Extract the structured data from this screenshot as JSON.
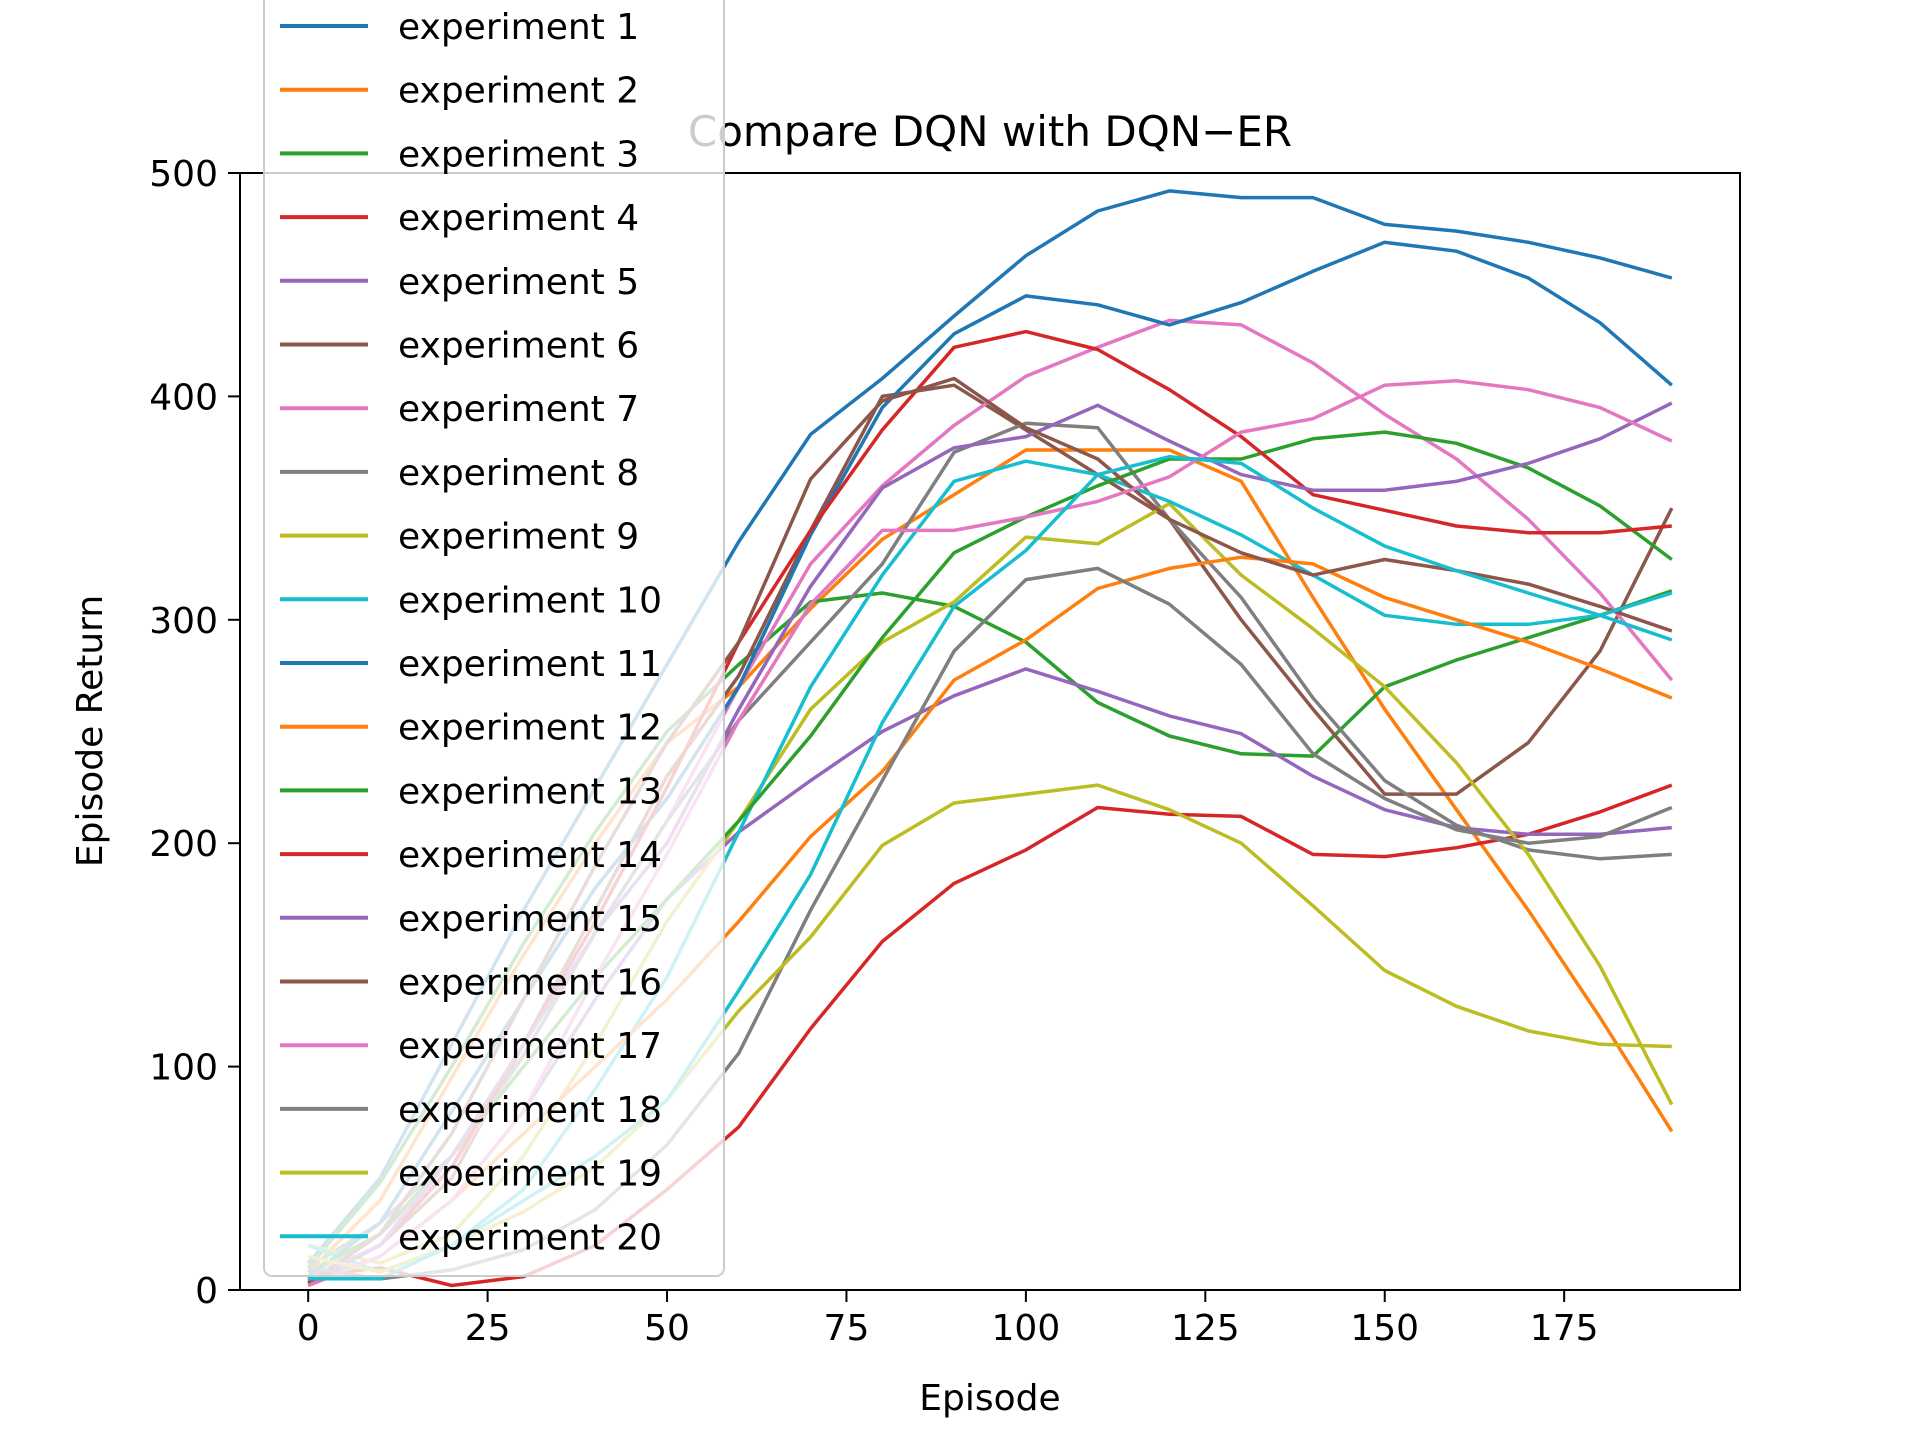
{
  "chart_data": {
    "type": "line",
    "title": "Compare DQN with DQN−ER",
    "xlabel": "Episode",
    "ylabel": "Episode Return",
    "xlim": [
      -9.5,
      199.5
    ],
    "ylim": [
      0,
      500
    ],
    "xticks": [
      0,
      25,
      50,
      75,
      100,
      125,
      150,
      175
    ],
    "xtick_labels": [
      "0",
      "25",
      "50",
      "75",
      "100",
      "125",
      "150",
      "175"
    ],
    "yticks": [
      0,
      100,
      200,
      300,
      400,
      500
    ],
    "ytick_labels": [
      "0",
      "100",
      "200",
      "300",
      "400",
      "500"
    ],
    "grid": false,
    "legend_position": "upper-left",
    "x": [
      0,
      10,
      20,
      30,
      40,
      50,
      60,
      70,
      80,
      90,
      100,
      110,
      120,
      130,
      140,
      150,
      160,
      170,
      180,
      190
    ],
    "series": [
      {
        "name": "experiment 1",
        "color": "#1f77b4",
        "values": [
          12,
          50,
          110,
          170,
          225,
          280,
          335,
          383,
          408,
          436,
          463,
          483,
          492,
          489,
          489,
          477,
          474,
          469,
          462,
          453
        ]
      },
      {
        "name": "experiment 2",
        "color": "#ff7f0e",
        "values": [
          8,
          40,
          95,
          150,
          200,
          245,
          270,
          305,
          336,
          356,
          376,
          376,
          376,
          362,
          310,
          260,
          215,
          170,
          122,
          71
        ]
      },
      {
        "name": "experiment 3",
        "color": "#2ca02c",
        "values": [
          10,
          48,
          100,
          155,
          205,
          250,
          280,
          308,
          312,
          306,
          290,
          263,
          248,
          240,
          239,
          270,
          282,
          292,
          302,
          313
        ]
      },
      {
        "name": "experiment 4",
        "color": "#d62728",
        "values": [
          6,
          10,
          2,
          6,
          20,
          45,
          73,
          117,
          156,
          182,
          197,
          216,
          213,
          212,
          195,
          194,
          198,
          204,
          214,
          226
        ]
      },
      {
        "name": "experiment 5",
        "color": "#9467bd",
        "values": [
          4,
          15,
          40,
          80,
          130,
          175,
          205,
          228,
          250,
          266,
          278,
          268,
          257,
          249,
          230,
          215,
          207,
          204,
          204,
          207
        ]
      },
      {
        "name": "experiment 6",
        "color": "#8c564b",
        "values": [
          5,
          20,
          50,
          110,
          170,
          230,
          275,
          340,
          400,
          405,
          385,
          365,
          345,
          300,
          260,
          222,
          222,
          245,
          286,
          350
        ]
      },
      {
        "name": "experiment 7",
        "color": "#e377c2",
        "values": [
          6,
          25,
          55,
          105,
          160,
          210,
          270,
          325,
          360,
          387,
          409,
          422,
          434,
          432,
          415,
          392,
          372,
          345,
          312,
          273
        ]
      },
      {
        "name": "experiment 8",
        "color": "#7f7f7f",
        "values": [
          10,
          30,
          60,
          105,
          160,
          210,
          255,
          290,
          325,
          375,
          388,
          386,
          345,
          310,
          265,
          228,
          208,
          197,
          193,
          195
        ]
      },
      {
        "name": "experiment 9",
        "color": "#bcbd22",
        "values": [
          20,
          12,
          25,
          60,
          110,
          165,
          210,
          260,
          290,
          308,
          337,
          334,
          352,
          320,
          296,
          270,
          236,
          195,
          145,
          83
        ]
      },
      {
        "name": "experiment 10",
        "color": "#17becf",
        "values": [
          20,
          8,
          20,
          45,
          90,
          140,
          205,
          270,
          320,
          362,
          371,
          365,
          353,
          338,
          320,
          302,
          298,
          298,
          302,
          291
        ]
      },
      {
        "name": "experiment 11",
        "color": "#1f77b4",
        "values": [
          6,
          30,
          80,
          130,
          180,
          220,
          270,
          338,
          395,
          428,
          445,
          441,
          432,
          442,
          456,
          469,
          465,
          453,
          433,
          405
        ]
      },
      {
        "name": "experiment 12",
        "color": "#ff7f0e",
        "values": [
          2,
          15,
          40,
          70,
          100,
          130,
          165,
          203,
          232,
          273,
          291,
          314,
          323,
          328,
          325,
          310,
          300,
          290,
          278,
          265
        ]
      },
      {
        "name": "experiment 13",
        "color": "#2ca02c",
        "values": [
          8,
          25,
          60,
          100,
          140,
          175,
          210,
          248,
          292,
          330,
          346,
          360,
          372,
          372,
          381,
          384,
          379,
          368,
          351,
          327
        ]
      },
      {
        "name": "experiment 14",
        "color": "#d62728",
        "values": [
          3,
          20,
          55,
          110,
          165,
          225,
          290,
          340,
          385,
          422,
          429,
          421,
          403,
          382,
          356,
          349,
          342,
          339,
          339,
          342
        ]
      },
      {
        "name": "experiment 15",
        "color": "#9467bd",
        "values": [
          4,
          20,
          60,
          110,
          160,
          200,
          260,
          315,
          359,
          377,
          382,
          396,
          380,
          365,
          358,
          358,
          362,
          370,
          381,
          397
        ]
      },
      {
        "name": "experiment 16",
        "color": "#8c564b",
        "values": [
          3,
          25,
          70,
          130,
          190,
          245,
          290,
          363,
          398,
          408,
          386,
          372,
          345,
          330,
          320,
          327,
          322,
          316,
          306,
          295
        ]
      },
      {
        "name": "experiment 17",
        "color": "#e377c2",
        "values": [
          2,
          15,
          40,
          80,
          140,
          195,
          255,
          307,
          340,
          340,
          346,
          353,
          364,
          384,
          390,
          405,
          407,
          403,
          395,
          380
        ]
      },
      {
        "name": "experiment 18",
        "color": "#7f7f7f",
        "values": [
          10,
          5,
          9,
          18,
          36,
          65,
          106,
          170,
          228,
          286,
          318,
          323,
          307,
          280,
          240,
          220,
          206,
          200,
          203,
          216
        ]
      },
      {
        "name": "experiment 19",
        "color": "#bcbd22",
        "values": [
          15,
          8,
          20,
          35,
          55,
          85,
          125,
          158,
          199,
          218,
          222,
          226,
          215,
          200,
          172,
          143,
          127,
          116,
          110,
          109
        ]
      },
      {
        "name": "experiment 20",
        "color": "#17becf",
        "values": [
          5,
          5,
          20,
          40,
          60,
          85,
          134,
          186,
          254,
          306,
          331,
          365,
          373,
          370,
          350,
          333,
          322,
          312,
          302,
          312
        ]
      }
    ]
  }
}
